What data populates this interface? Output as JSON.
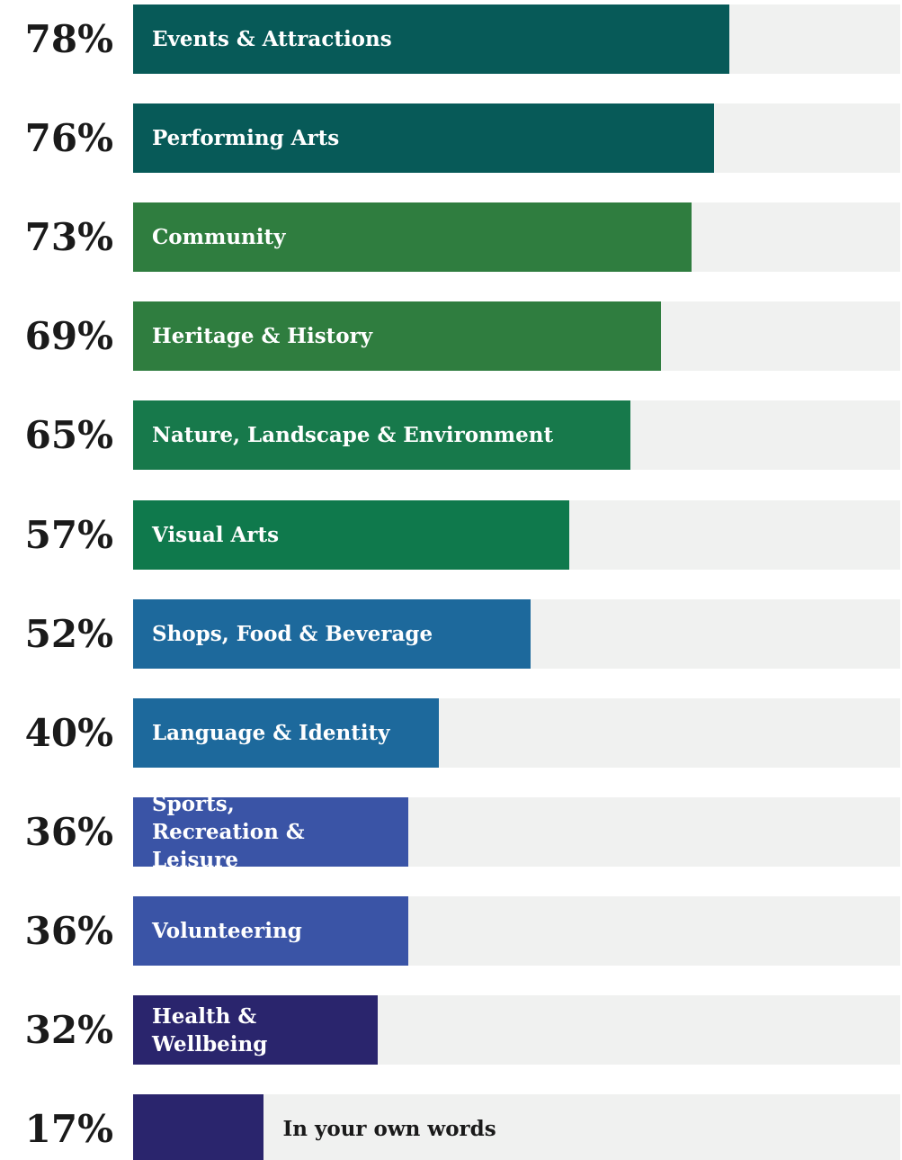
{
  "chart_data": {
    "type": "bar",
    "categories": [
      "Events & Attractions",
      "Performing Arts",
      "Community",
      "Heritage & History",
      "Nature, Landscape & Environment",
      "Visual Arts",
      "Shops, Food & Beverage",
      "Language & Identity",
      "Sports, Recreation & Leisure",
      "Volunteering",
      "Health & Wellbeing",
      "In your own words"
    ],
    "values": [
      78,
      76,
      73,
      69,
      65,
      57,
      52,
      40,
      36,
      36,
      32,
      17
    ],
    "value_labels": [
      "78%",
      "76%",
      "73%",
      "69%",
      "65%",
      "57%",
      "52%",
      "40%",
      "36%",
      "36%",
      "32%",
      "17%"
    ],
    "colors": [
      "#075a58",
      "#075a58",
      "#2f7d3f",
      "#2f7d3f",
      "#17794b",
      "#0f794c",
      "#1d699c",
      "#1d699c",
      "#3a54a6",
      "#3a54a6",
      "#2a256d",
      "#2a256d"
    ],
    "track_color": "#f0f1f0",
    "xlim": [
      0,
      100
    ]
  }
}
